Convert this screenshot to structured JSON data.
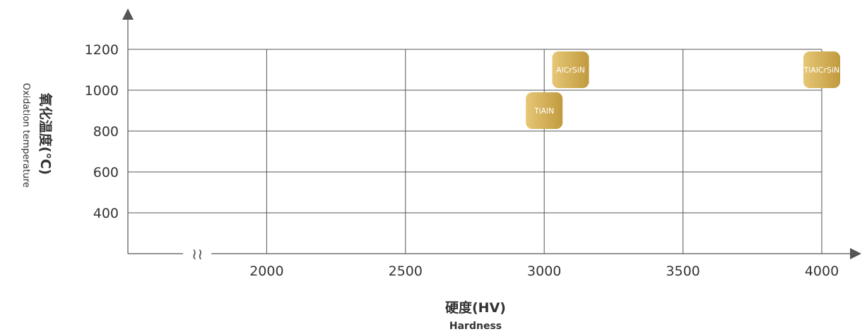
{
  "chart_data": {
    "type": "scatter",
    "xlabel": "硬度(HV)",
    "xlabel_en": "Hardness",
    "ylabel": "氧化温度(℃)",
    "ylabel_en": "Oxidation temperature",
    "x_ticks": [
      2000,
      2500,
      3000,
      3500,
      4000
    ],
    "y_ticks": [
      400,
      600,
      800,
      1000,
      1200
    ],
    "xlim": [
      1500,
      4000
    ],
    "ylim": [
      200,
      1200
    ],
    "axis_break": "≀≀",
    "axis_break_at": 1750,
    "grid": true,
    "points": [
      {
        "label": "TiAlN",
        "x": 3000,
        "y": 900
      },
      {
        "label": "AlCrSiN",
        "x": 3095,
        "y": 1100
      },
      {
        "label": "TiAlCrSiN",
        "x": 4000,
        "y": 1100
      }
    ],
    "colors": {
      "marker_light": "#e6c776",
      "marker_dark": "#c19a3e",
      "axis": "#555555",
      "text": "#333333"
    }
  }
}
